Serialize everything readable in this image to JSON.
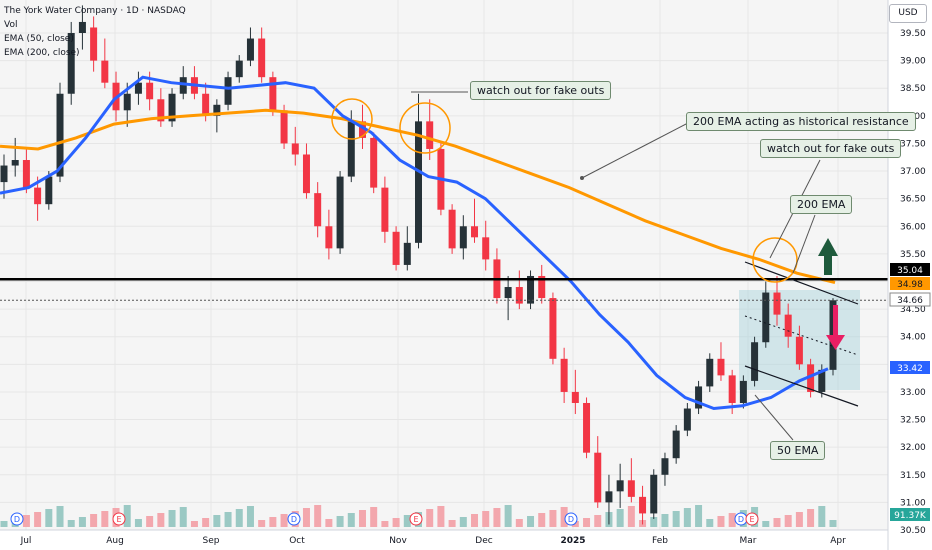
{
  "header": {
    "symbol": "The York Water Company · 1D · NASDAQ",
    "vol": "Vol",
    "ema50": "EMA (50, close)",
    "ema200": "EMA (200, close)"
  },
  "currency": "USD",
  "colors": {
    "up": "#263238",
    "down": "#f23645",
    "ema50": "#2962ff",
    "ema200": "#ff9800",
    "resistance": "#000000",
    "note_bg": "#e6f0e6",
    "channel": "#a7d3dc",
    "arrow_up": "#1e5a3c",
    "arrow_down": "#e91e63"
  },
  "annotations": {
    "fake1": "watch out for fake outs",
    "resist": "200 EMA acting as historical resistance",
    "fake2": "watch out for fake outs",
    "ema200": "200 EMA",
    "ema50": "50 EMA"
  },
  "price_badges": {
    "resistance": "35.04",
    "ema200": "34.98",
    "last": "34.66",
    "ema50": "33.42",
    "vol": "91.37K"
  },
  "event_markers": [
    {
      "label": "D",
      "x": "Jul"
    },
    {
      "label": "E",
      "x": "Aug"
    },
    {
      "label": "D",
      "x": "Sep"
    },
    {
      "label": "E",
      "x": "Nov"
    },
    {
      "label": "D",
      "x": "Dec"
    },
    {
      "label": "D",
      "x": "Mar"
    },
    {
      "label": "E",
      "x": "Mar"
    }
  ],
  "chart_data": {
    "type": "line",
    "x_labels": [
      "Jul",
      "Aug",
      "Sep",
      "Oct",
      "Nov",
      "Dec",
      "2025",
      "Feb",
      "Mar",
      "Apr"
    ],
    "y_ticks": [
      "39.50",
      "39.00",
      "38.50",
      "38.00",
      "37.50",
      "37.00",
      "36.50",
      "36.00",
      "35.50",
      "35.00",
      "34.50",
      "34.00",
      "33.50",
      "33.00",
      "32.50",
      "32.00",
      "31.50",
      "31.00",
      "30.50"
    ],
    "ylim": [
      30.5,
      39.8
    ],
    "resistance_level": 35.04,
    "series": [
      {
        "name": "EMA (50, close)",
        "values": [
          36.6,
          36.7,
          37.0,
          37.6,
          38.3,
          38.7,
          38.6,
          38.55,
          38.5,
          38.55,
          38.6,
          38.5,
          38.0,
          37.7,
          37.2,
          36.9,
          36.8,
          36.5,
          36.0,
          35.5,
          35.0,
          34.4,
          33.9,
          33.3,
          32.9,
          32.7,
          32.75,
          32.9,
          33.2,
          33.42
        ]
      },
      {
        "name": "EMA (200, close)",
        "values": [
          37.45,
          37.4,
          37.6,
          37.85,
          37.95,
          38.0,
          38.05,
          38.1,
          38.05,
          37.95,
          37.8,
          37.65,
          37.45,
          37.2,
          36.95,
          36.7,
          36.4,
          36.1,
          35.85,
          35.6,
          35.4,
          35.15,
          34.98
        ]
      }
    ],
    "candles": [
      [
        36.8,
        37.3,
        36.5,
        37.1
      ],
      [
        37.1,
        37.6,
        36.9,
        37.2
      ],
      [
        37.2,
        37.4,
        36.6,
        36.7
      ],
      [
        36.7,
        36.9,
        36.1,
        36.4
      ],
      [
        36.4,
        37.0,
        36.3,
        36.9
      ],
      [
        36.9,
        38.6,
        36.8,
        38.4
      ],
      [
        38.4,
        39.7,
        38.2,
        39.5
      ],
      [
        39.5,
        40.0,
        39.2,
        39.7
      ],
      [
        39.6,
        39.8,
        38.8,
        39.0
      ],
      [
        39.0,
        39.4,
        38.5,
        38.6
      ],
      [
        38.6,
        38.8,
        37.9,
        38.1
      ],
      [
        38.1,
        38.6,
        37.8,
        38.4
      ],
      [
        38.4,
        38.8,
        38.2,
        38.6
      ],
      [
        38.6,
        38.8,
        38.1,
        38.3
      ],
      [
        38.3,
        38.5,
        37.8,
        37.9
      ],
      [
        37.9,
        38.5,
        37.8,
        38.4
      ],
      [
        38.4,
        38.9,
        38.3,
        38.7
      ],
      [
        38.7,
        38.9,
        38.3,
        38.4
      ],
      [
        38.4,
        38.6,
        37.9,
        38.0
      ],
      [
        38.0,
        38.3,
        37.7,
        38.2
      ],
      [
        38.2,
        38.8,
        38.1,
        38.7
      ],
      [
        38.7,
        39.1,
        38.6,
        39.0
      ],
      [
        39.0,
        39.6,
        38.9,
        39.4
      ],
      [
        39.4,
        39.6,
        38.6,
        38.7
      ],
      [
        38.7,
        38.8,
        38.0,
        38.1
      ],
      [
        38.1,
        38.2,
        37.4,
        37.5
      ],
      [
        37.5,
        37.8,
        37.1,
        37.3
      ],
      [
        37.3,
        37.5,
        36.5,
        36.6
      ],
      [
        36.6,
        36.8,
        35.8,
        36.0
      ],
      [
        36.0,
        36.3,
        35.4,
        35.6
      ],
      [
        35.6,
        37.0,
        35.5,
        36.9
      ],
      [
        36.9,
        38.1,
        36.8,
        37.9
      ],
      [
        37.9,
        38.2,
        37.4,
        37.6
      ],
      [
        37.6,
        37.7,
        36.6,
        36.7
      ],
      [
        36.7,
        36.9,
        35.7,
        35.9
      ],
      [
        35.9,
        36.0,
        35.2,
        35.3
      ],
      [
        35.3,
        36.0,
        35.2,
        35.7
      ],
      [
        35.7,
        38.4,
        35.6,
        37.9
      ],
      [
        37.9,
        38.3,
        37.2,
        37.4
      ],
      [
        37.4,
        37.5,
        36.2,
        36.3
      ],
      [
        36.3,
        36.4,
        35.5,
        35.6
      ],
      [
        35.6,
        36.2,
        35.4,
        36.0
      ],
      [
        36.0,
        36.5,
        35.7,
        35.8
      ],
      [
        35.8,
        36.1,
        35.2,
        35.4
      ],
      [
        35.4,
        35.6,
        34.6,
        34.7
      ],
      [
        34.7,
        35.1,
        34.3,
        34.9
      ],
      [
        34.9,
        35.2,
        34.5,
        34.6
      ],
      [
        34.6,
        35.2,
        34.5,
        35.1
      ],
      [
        35.1,
        35.3,
        34.6,
        34.7
      ],
      [
        34.7,
        34.8,
        33.5,
        33.6
      ],
      [
        33.6,
        33.8,
        32.8,
        33.0
      ],
      [
        33.0,
        33.4,
        32.6,
        32.8
      ],
      [
        32.8,
        32.9,
        31.8,
        31.9
      ],
      [
        31.9,
        32.2,
        30.9,
        31.0
      ],
      [
        31.0,
        31.5,
        30.6,
        31.2
      ],
      [
        31.2,
        31.7,
        30.9,
        31.4
      ],
      [
        31.4,
        31.8,
        31.0,
        31.1
      ],
      [
        31.1,
        31.3,
        30.6,
        30.8
      ],
      [
        30.8,
        31.6,
        30.7,
        31.5
      ],
      [
        31.5,
        31.9,
        31.3,
        31.8
      ],
      [
        31.8,
        32.4,
        31.7,
        32.3
      ],
      [
        32.3,
        32.8,
        32.2,
        32.7
      ],
      [
        32.7,
        33.2,
        32.6,
        33.1
      ],
      [
        33.1,
        33.7,
        33.0,
        33.6
      ],
      [
        33.6,
        33.9,
        33.2,
        33.3
      ],
      [
        33.3,
        33.4,
        32.6,
        32.8
      ],
      [
        32.8,
        33.3,
        32.7,
        33.2
      ],
      [
        33.2,
        34.0,
        33.1,
        33.9
      ],
      [
        33.9,
        35.0,
        33.8,
        34.8
      ],
      [
        34.8,
        35.1,
        34.2,
        34.4
      ],
      [
        34.4,
        34.6,
        33.8,
        34.0
      ],
      [
        34.0,
        34.2,
        33.4,
        33.5
      ],
      [
        33.5,
        33.6,
        32.9,
        33.0
      ],
      [
        33.0,
        33.5,
        32.9,
        33.4
      ],
      [
        33.4,
        34.7,
        33.3,
        34.66
      ]
    ]
  }
}
